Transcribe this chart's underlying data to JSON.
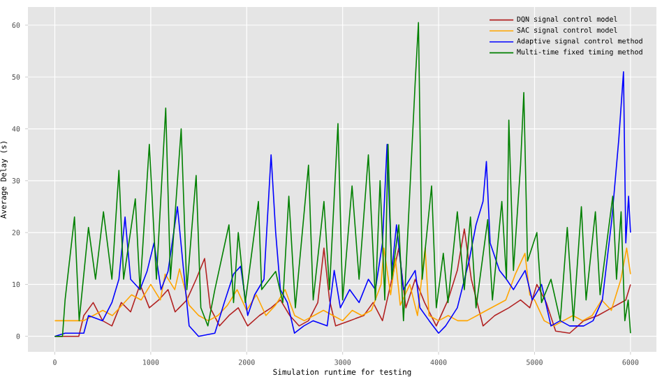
{
  "chart_data": {
    "type": "line",
    "xlabel": "Simulation runtime for testing",
    "ylabel": "Average Delay (s)",
    "xlim": [
      -280,
      6270
    ],
    "ylim": [
      -3,
      63.5
    ],
    "xticks": [
      0,
      1000,
      2000,
      3000,
      4000,
      5000,
      6000
    ],
    "yticks": [
      0,
      10,
      20,
      30,
      40,
      50,
      60
    ],
    "grid": true,
    "legend": "top right",
    "marker": "none",
    "line_style": "solid",
    "series": [
      {
        "name": "DQN signal control model",
        "color": "#b22222",
        "x": [
          0,
          250,
          302,
          400,
          498,
          595,
          693,
          790,
          888,
          985,
          1083,
          1180,
          1254,
          1376,
          1473,
          1561,
          1620,
          1717,
          1815,
          1912,
          2010,
          2132,
          2254,
          2351,
          2449,
          2546,
          2644,
          2741,
          2805,
          2863,
          2927,
          3073,
          3220,
          3317,
          3415,
          3512,
          3585,
          3659,
          3756,
          3854,
          3976,
          4098,
          4195,
          4268,
          4341,
          4463,
          4585,
          4732,
          4854,
          4951,
          5024,
          5122,
          5220,
          5366,
          5512,
          5659,
          5805,
          5951,
          6000
        ],
        "values": [
          0,
          0,
          4,
          6.5,
          3,
          2,
          6.5,
          4.7,
          10,
          5.5,
          7,
          9,
          4.7,
          7,
          11,
          15,
          5.5,
          2,
          4,
          5.5,
          2,
          4,
          5.5,
          7,
          4,
          2,
          3,
          6.5,
          17,
          7,
          2,
          3,
          4,
          6.5,
          3,
          11,
          17,
          5.5,
          11,
          6.5,
          2,
          7,
          12.7,
          20.7,
          11,
          2,
          4,
          5.5,
          7,
          5.5,
          10,
          6.5,
          1,
          0.6,
          3,
          4,
          5.5,
          7,
          10
        ]
      },
      {
        "name": "SAC signal control model",
        "color": "#ffa500",
        "x": [
          0,
          300,
          400,
          500,
          600,
          700,
          800,
          900,
          1000,
          1100,
          1150,
          1250,
          1300,
          1400,
          1500,
          1600,
          1700,
          1800,
          1900,
          2000,
          2100,
          2200,
          2300,
          2400,
          2500,
          2600,
          2700,
          2800,
          2900,
          3000,
          3100,
          3200,
          3300,
          3400,
          3430,
          3500,
          3550,
          3600,
          3700,
          3780,
          3860,
          3900,
          4000,
          4100,
          4200,
          4300,
          4400,
          4500,
          4600,
          4700,
          4800,
          4900,
          4950,
          5000,
          5100,
          5200,
          5300,
          5400,
          5500,
          5600,
          5700,
          5800,
          5900,
          5960,
          6000
        ],
        "values": [
          3,
          3,
          4,
          5,
          4,
          6,
          8,
          7,
          10,
          7,
          12,
          9,
          13,
          6,
          4,
          3,
          4,
          6,
          9,
          5,
          8,
          4,
          6,
          9,
          4,
          3,
          4,
          5,
          4,
          3,
          5,
          4,
          5,
          10,
          17,
          8,
          15,
          6,
          10,
          4,
          17,
          4,
          3,
          4,
          3,
          3,
          4,
          5,
          6,
          7,
          12,
          16,
          8,
          7,
          3,
          2,
          3,
          4,
          3,
          4,
          7,
          5,
          11,
          17,
          12
        ]
      },
      {
        "name": "Adaptive signal control method",
        "color": "#0000ff",
        "x": [
          0,
          107,
          302,
          351,
          498,
          595,
          668,
          732,
          790,
          888,
          961,
          1034,
          1107,
          1180,
          1278,
          1351,
          1400,
          1498,
          1668,
          1766,
          1863,
          1937,
          2010,
          2083,
          2180,
          2254,
          2302,
          2351,
          2424,
          2498,
          2595,
          2693,
          2839,
          2912,
          2976,
          3073,
          3171,
          3268,
          3341,
          3415,
          3463,
          3512,
          3561,
          3634,
          3756,
          3805,
          3902,
          4000,
          4073,
          4195,
          4317,
          4390,
          4463,
          4498,
          4537,
          4634,
          4707,
          4780,
          4902,
          4976,
          5073,
          5171,
          5268,
          5366,
          5512,
          5610,
          5707,
          5805,
          5878,
          5927,
          5951,
          5980,
          6000
        ],
        "values": [
          0,
          0.6,
          0.6,
          4,
          3,
          6.5,
          11,
          23,
          11,
          9,
          12.5,
          18,
          9,
          12.5,
          25,
          11,
          2,
          0,
          0.6,
          6.5,
          12,
          13.5,
          4,
          8,
          11,
          35,
          20,
          9,
          6.5,
          0.6,
          2,
          3,
          2,
          12.7,
          5.5,
          9,
          6.5,
          11,
          9,
          18,
          37,
          12.5,
          21.5,
          9,
          12.7,
          5.5,
          3,
          0.6,
          2,
          5.5,
          14.5,
          21.5,
          26,
          33.7,
          18,
          12.7,
          11,
          9,
          12.7,
          7,
          10,
          2,
          3,
          2,
          2,
          3,
          7,
          22.5,
          38,
          51,
          18,
          27,
          20
        ]
      },
      {
        "name": "Multi-time fixed timing method",
        "color": "#008000",
        "x": [
          0,
          80,
          107,
          205,
          254,
          351,
          424,
          507,
          595,
          668,
          717,
          839,
          888,
          985,
          1059,
          1156,
          1205,
          1317,
          1376,
          1473,
          1522,
          1595,
          1668,
          1815,
          1863,
          1912,
          1985,
          2122,
          2156,
          2302,
          2376,
          2439,
          2507,
          2644,
          2693,
          2805,
          2863,
          2951,
          3000,
          3098,
          3171,
          3268,
          3341,
          3390,
          3439,
          3473,
          3512,
          3585,
          3634,
          3756,
          3790,
          3829,
          3927,
          3976,
          4049,
          4098,
          4195,
          4268,
          4332,
          4390,
          4512,
          4561,
          4659,
          4707,
          4732,
          4780,
          4854,
          4888,
          4927,
          5024,
          5073,
          5171,
          5268,
          5341,
          5405,
          5488,
          5537,
          5634,
          5683,
          5815,
          5854,
          5902,
          5941,
          5976,
          6000
        ],
        "values": [
          0,
          0,
          7,
          23,
          3,
          21,
          11,
          24,
          11,
          32,
          11,
          26.5,
          9,
          37,
          11,
          44,
          11,
          40,
          9,
          31,
          5.5,
          2,
          9,
          21.5,
          6.5,
          20,
          6.5,
          26,
          9,
          12.5,
          6.5,
          27,
          5.5,
          33,
          7,
          26,
          9,
          41,
          7,
          29,
          11,
          35,
          7,
          30,
          7,
          37,
          11,
          21.5,
          3,
          49,
          60.5,
          11,
          29,
          5.5,
          16,
          6.5,
          24,
          9,
          23,
          5.5,
          22.5,
          7,
          26,
          11,
          41.7,
          12.7,
          33,
          47,
          14.5,
          20,
          6.5,
          11,
          3,
          21,
          3,
          25,
          7,
          24,
          8,
          27,
          11,
          24,
          3,
          7,
          0.6
        ]
      }
    ]
  }
}
